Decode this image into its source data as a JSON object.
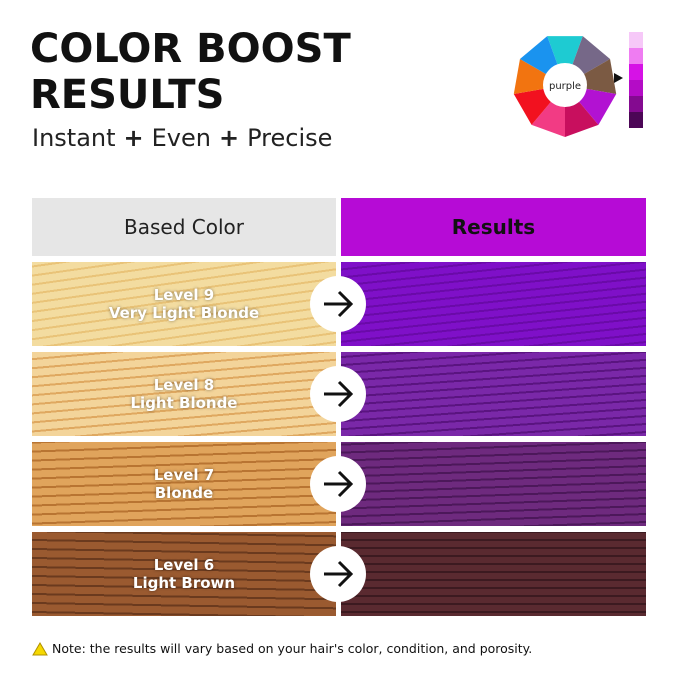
{
  "header": {
    "title_line1": "COLOR BOOST",
    "title_line2": "RESULTS",
    "sub": [
      "Instant",
      "Even",
      "Precise"
    ],
    "plus": "+"
  },
  "wheel": {
    "center_label": "purple",
    "segments": [
      "#1ecbd2",
      "#766888",
      "#7b5a43",
      "#b212d2",
      "#c80f5e",
      "#f23b84",
      "#f2111f",
      "#f27410",
      "#1a93ef"
    ],
    "swatch": [
      "#f6c8f8",
      "#ef7cf2",
      "#d612e6",
      "#b40cc6",
      "#840a90",
      "#4c0656"
    ]
  },
  "table": {
    "col_left": "Based Color",
    "col_right": "Results",
    "rows": [
      {
        "level": "Level 9",
        "name": "Very Light Blonde",
        "base": [
          "#f3dca0",
          "#e9c378"
        ],
        "result": [
          "#7f10c8",
          "#6a0aa8"
        ]
      },
      {
        "level": "Level 8",
        "name": "Light Blonde",
        "base": [
          "#f3d49a",
          "#dfa860"
        ],
        "result": [
          "#7a28a8",
          "#5a1480"
        ]
      },
      {
        "level": "Level 7",
        "name": "Blonde",
        "base": [
          "#e0a45c",
          "#b87432"
        ],
        "result": [
          "#6e2a7e",
          "#4c185a"
        ]
      },
      {
        "level": "Level 6",
        "name": "Light Brown",
        "base": [
          "#9a5a30",
          "#6a3a1e"
        ],
        "result": [
          "#5a2a30",
          "#3c1a20"
        ]
      }
    ]
  },
  "note": "Note: the results will vary based on your hair's color, condition, and porosity.",
  "colors": {
    "accent": "#b60bd6",
    "header_gray": "#e6e6e6",
    "warning": "#f5d800"
  }
}
